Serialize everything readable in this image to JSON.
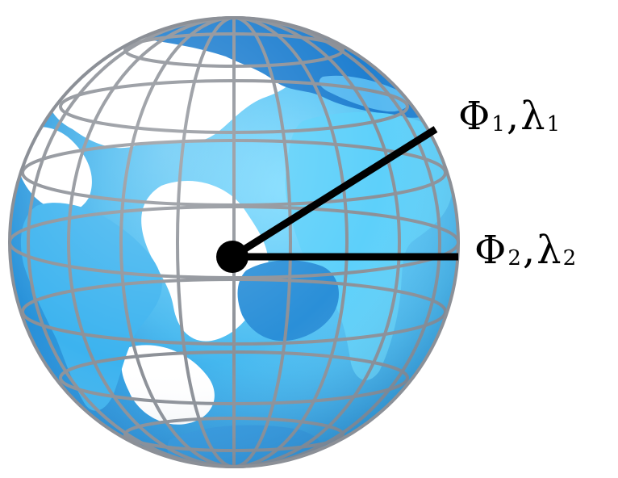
{
  "labels": {
    "point1": {
      "phi": "Φ",
      "phi_sub": "1",
      "separator": ",",
      "lambda": "λ",
      "lambda_sub": "1"
    },
    "point2": {
      "phi": "Φ",
      "phi_sub": "2",
      "separator": ",",
      "lambda": "λ",
      "lambda_sub": "2"
    }
  },
  "colors": {
    "ocean_light": "#5cc8f5",
    "ocean_dark": "#1f8fd8",
    "land": "#ffffff",
    "grid": "#8c9097",
    "lines": "#000000",
    "background": "#ffffff"
  },
  "icons": {
    "globe": "globe-icon",
    "center": "center-point-icon"
  }
}
